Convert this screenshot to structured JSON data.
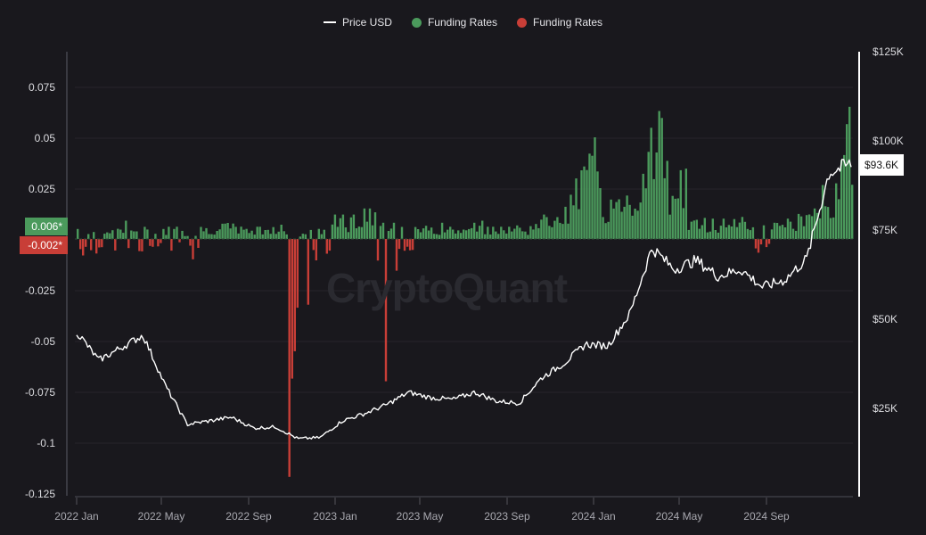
{
  "legend": {
    "items": [
      {
        "label": "Price USD",
        "type": "line",
        "color": "#ffffff"
      },
      {
        "label": "Funding Rates",
        "type": "dot",
        "color": "#4b9a5c"
      },
      {
        "label": "Funding Rates",
        "type": "dot",
        "color": "#c83e37"
      }
    ]
  },
  "left_axis": {
    "ticks": [
      "0.075",
      "0.05",
      "0.025",
      "-0.025",
      "-0.05",
      "-0.075",
      "-0.1",
      "-0.125"
    ]
  },
  "right_axis": {
    "ticks": [
      "$125K",
      "$100K",
      "$75K",
      "$50K",
      "$25K"
    ]
  },
  "x_axis": {
    "ticks": [
      "2022 Jan",
      "2022 May",
      "2022 Sep",
      "2023 Jan",
      "2023 May",
      "2023 Sep",
      "2024 Jan",
      "2024 May",
      "2024 Sep"
    ]
  },
  "badges": {
    "funding_positive": "0.006*",
    "funding_negative": "-0.002*",
    "price_current": "$93.6K"
  },
  "watermark": "CryptoQuant",
  "colors": {
    "background": "#19181d",
    "positive": "#4b9a5c",
    "negative": "#c83e37",
    "price_line": "#ffffff",
    "grid": "#26252b"
  },
  "chart_data": {
    "type": "bar+line",
    "title": "",
    "xlabel": "",
    "ylabel_left": "Funding Rates",
    "ylabel_right": "Price USD",
    "ylim_left": [
      -0.125,
      0.09
    ],
    "ylim_right": [
      0,
      125000
    ],
    "grid": true,
    "legend_position": "top",
    "x": [
      "2022-01",
      "2022-02",
      "2022-03",
      "2022-04",
      "2022-05",
      "2022-06",
      "2022-07",
      "2022-08",
      "2022-09",
      "2022-10",
      "2022-11",
      "2022-12",
      "2023-01",
      "2023-02",
      "2023-03",
      "2023-04",
      "2023-05",
      "2023-06",
      "2023-07",
      "2023-08",
      "2023-09",
      "2023-10",
      "2023-11",
      "2023-12",
      "2024-01",
      "2024-02",
      "2024-03",
      "2024-04",
      "2024-05",
      "2024-06",
      "2024-07",
      "2024-08",
      "2024-09",
      "2024-10",
      "2024-11",
      "2024-12"
    ],
    "series": [
      {
        "name": "Price USD",
        "axis": "right",
        "type": "line",
        "values": [
          46500,
          38500,
          42000,
          45500,
          31500,
          20500,
          21500,
          22500,
          19500,
          19800,
          16500,
          16800,
          21500,
          23500,
          26000,
          29500,
          28000,
          27500,
          29500,
          27000,
          26500,
          33500,
          37500,
          43000,
          42500,
          51500,
          70000,
          64000,
          66500,
          62000,
          64000,
          59000,
          61000,
          67000,
          91000,
          93600
        ]
      },
      {
        "name": "Funding Rates (max)",
        "axis": "left",
        "type": "bar",
        "values": [
          0.008,
          0.006,
          0.009,
          0.007,
          0.006,
          0.005,
          0.008,
          0.009,
          0.006,
          0.007,
          0.003,
          0.007,
          0.012,
          0.015,
          0.008,
          0.01,
          0.008,
          0.006,
          0.009,
          0.006,
          0.008,
          0.012,
          0.025,
          0.05,
          0.025,
          0.035,
          0.082,
          0.045,
          0.012,
          0.01,
          0.015,
          0.008,
          0.01,
          0.015,
          0.04,
          0.065
        ]
      },
      {
        "name": "Funding Rates (min)",
        "axis": "left",
        "type": "bar",
        "values": [
          -0.012,
          -0.01,
          -0.008,
          -0.01,
          -0.01,
          -0.01,
          -0.005,
          -0.003,
          -0.005,
          -0.004,
          -0.117,
          -0.015,
          -0.002,
          -0.003,
          -0.07,
          -0.016,
          -0.003,
          -0.002,
          -0.001,
          -0.002,
          -0.004,
          -0.001,
          -0.001,
          -0.001,
          -0.001,
          -0.001,
          -0.001,
          -0.001,
          -0.003,
          -0.001,
          -0.001,
          -0.01,
          -0.004,
          -0.001,
          -0.001,
          -0.001
        ]
      }
    ],
    "annotations": [
      {
        "text": "0.006*",
        "axis": "left",
        "value": 0.006
      },
      {
        "text": "-0.002*",
        "axis": "left",
        "value": -0.002
      },
      {
        "text": "$93.6K",
        "axis": "right",
        "value": 93600
      }
    ]
  }
}
